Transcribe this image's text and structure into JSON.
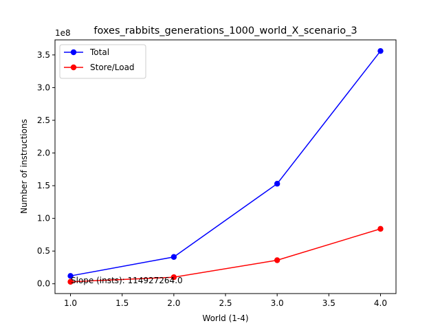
{
  "chart_data": {
    "type": "line",
    "title": "foxes_rabbits_generations_1000_world_X_scenario_3",
    "xlabel": "World (1-4)",
    "ylabel": "Number of instructions",
    "y_offset_label": "1e8",
    "x": [
      1,
      2,
      3,
      4
    ],
    "xlim": [
      0.85,
      4.15
    ],
    "ylim": [
      -0.15,
      3.73
    ],
    "y_scale_note": "values in units of 1e8",
    "xticks": [
      "1.0",
      "1.5",
      "2.0",
      "2.5",
      "3.0",
      "3.5",
      "4.0"
    ],
    "yticks": [
      "0.0",
      "0.5",
      "1.0",
      "1.5",
      "2.0",
      "2.5",
      "3.0",
      "3.5"
    ],
    "grid": false,
    "legend_position": "upper-left",
    "series": [
      {
        "name": "Total",
        "color": "#0000ff",
        "marker": "circle",
        "values": [
          0.12,
          0.41,
          1.53,
          3.56
        ]
      },
      {
        "name": "Store/Load",
        "color": "#ff0000",
        "marker": "circle",
        "values": [
          0.03,
          0.1,
          0.36,
          0.84
        ]
      }
    ],
    "annotation": {
      "text": "Slope (insts): 114927264.0",
      "x": 1.0,
      "y": 0.0
    }
  }
}
